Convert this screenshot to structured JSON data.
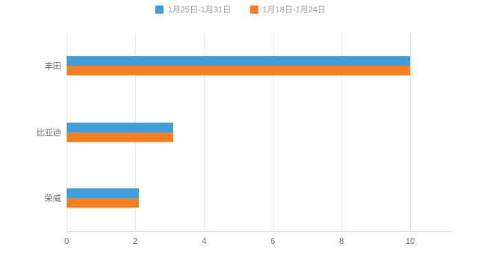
{
  "chart_data": {
    "type": "bar",
    "orientation": "horizontal",
    "title": "",
    "categories": [
      "丰田",
      "比亚迪",
      "荣威"
    ],
    "series": [
      {
        "name": "1月25日-1月31日",
        "color": "#3A9FDC",
        "values": [
          10,
          3.1,
          2.1
        ]
      },
      {
        "name": "1月18日-1月24日",
        "color": "#FC7D1D",
        "values": [
          10,
          3.1,
          2.1
        ]
      }
    ],
    "xlabel": "",
    "ylabel": "",
    "xlim": [
      0,
      11.2
    ],
    "xticks": [
      0,
      2,
      4,
      6,
      8,
      10
    ],
    "grid": true,
    "legend_position": "top",
    "colors": {
      "axis_line": "#cccccc",
      "grid_line": "#e8e8e8",
      "tick_text": "#666666",
      "legend_text": "#999999",
      "background": "#ffffff"
    }
  }
}
